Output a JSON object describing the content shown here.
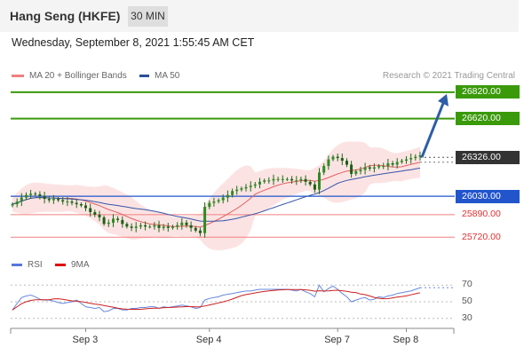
{
  "header": {
    "title": "Hang Seng (HKFE)",
    "interval": "30 MIN"
  },
  "date_line": "Wednesday, September 8, 2021 1:55:45 AM CET",
  "legend": {
    "bb_label": "MA 20 + Bollinger Bands",
    "ma50_label": "MA 50",
    "credit": "Research © 2021 Trading Central",
    "rsi_label": "RSI",
    "rsi_ma_label": "9MA"
  },
  "colors": {
    "green": "#3a9a0a",
    "blue": "#2255cc",
    "red": "#e06060",
    "dark": "#333333",
    "bb_fill": "#fbdcdc",
    "ma20": "#e06060",
    "ma50": "#3355aa",
    "candle": "#1e6e16"
  },
  "chart_data": {
    "type": "candlestick",
    "x_tick_labels": [
      "Sep 3",
      "Sep 4",
      "Sep 7",
      "Sep 8"
    ],
    "ylim": [
      25620,
      26900
    ],
    "levels": [
      {
        "value": 26820,
        "label": "26820.00",
        "kind": "resistance"
      },
      {
        "value": 26620,
        "label": "26620.00",
        "kind": "resistance"
      },
      {
        "value": 26326,
        "label": "26326.00",
        "kind": "last_price"
      },
      {
        "value": 26030,
        "label": "26030.00",
        "kind": "pivot"
      },
      {
        "value": 25890,
        "label": "25890.00",
        "kind": "support"
      },
      {
        "value": 25720,
        "label": "25720.00",
        "kind": "support"
      }
    ],
    "target_arrow": {
      "from": 26326,
      "to": 26820
    },
    "price_path": [
      25970,
      25990,
      26020,
      26040,
      26050,
      26045,
      26030,
      26010,
      26000,
      26010,
      26000,
      25990,
      25990,
      25980,
      25970,
      25960,
      25940,
      25910,
      25890,
      25870,
      25820,
      25830,
      25860,
      25850,
      25820,
      25800,
      25790,
      25800,
      25810,
      25800,
      25800,
      25810,
      25790,
      25800,
      25790,
      25800,
      25810,
      25830,
      25810,
      25790,
      25770,
      25750,
      25950,
      25980,
      25990,
      26000,
      26020,
      26040,
      26070,
      26080,
      26090,
      26100,
      26110,
      26120,
      26140,
      26150,
      26150,
      26160,
      26160,
      26160,
      26160,
      26150,
      26150,
      26160,
      26140,
      26120,
      26080,
      26210,
      26260,
      26310,
      26330,
      26320,
      26300,
      26270,
      26200,
      26220,
      26230,
      26250,
      26240,
      26250,
      26260,
      26260,
      26280,
      26270,
      26290,
      26300,
      26310,
      26320,
      26330,
      26340
    ],
    "rsi": {
      "levels": [
        70,
        50,
        30
      ],
      "ylim": [
        20,
        80
      ],
      "values": [
        40,
        48,
        55,
        57,
        58,
        56,
        53,
        52,
        52,
        51,
        49,
        48,
        49,
        50,
        52,
        48,
        44,
        43,
        42,
        43,
        38,
        39,
        42,
        42,
        40,
        40,
        42,
        42,
        43,
        43,
        44,
        44,
        42,
        44,
        43,
        44,
        45,
        46,
        45,
        44,
        42,
        43,
        52,
        54,
        55,
        56,
        58,
        59,
        60,
        61,
        62,
        63,
        63,
        64,
        65,
        65,
        65,
        65,
        65,
        65,
        65,
        64,
        63,
        65,
        62,
        60,
        56,
        70,
        62,
        66,
        69,
        65,
        60,
        56,
        50,
        52,
        54,
        55,
        52,
        53,
        56,
        55,
        57,
        58,
        60,
        61,
        62,
        63,
        65,
        67
      ]
    }
  }
}
